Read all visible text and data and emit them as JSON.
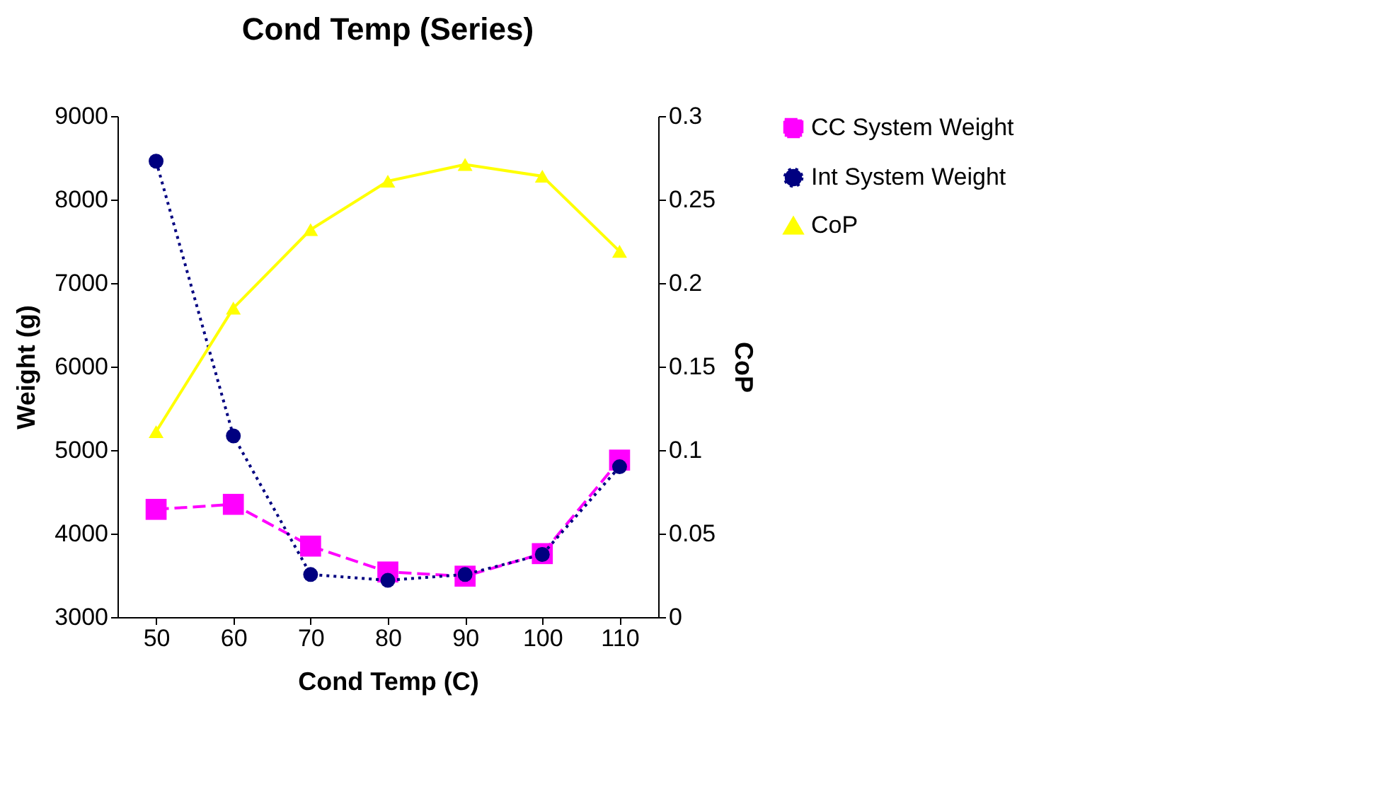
{
  "chart_data": {
    "type": "line",
    "title": "Cond Temp (Series)",
    "xlabel": "Cond Temp (C)",
    "ylabel": "Weight (g)",
    "y2label": "CoP",
    "categories": [
      "50",
      "60",
      "70",
      "80",
      "90",
      "100",
      "110"
    ],
    "series": [
      {
        "name": "CC System Weight",
        "color": "#ff00ff",
        "marker": "square",
        "line_style": "dashed",
        "values": [
          4290,
          4350,
          3850,
          3540,
          3490,
          3760,
          4880
        ]
      },
      {
        "name": "Int System Weight",
        "color": "#000080",
        "marker": "circle",
        "line_style": "dotted",
        "values": [
          8460,
          5170,
          3510,
          3440,
          3510,
          3750,
          4800
        ]
      },
      {
        "name": "CoP",
        "color": "#ffff00",
        "marker": "triangle",
        "line_style": "solid",
        "axis": "y2",
        "values": [
          0.111,
          0.185,
          0.232,
          0.261,
          0.271,
          0.264,
          0.219
        ]
      }
    ],
    "ylim": [
      3000,
      9000
    ],
    "yticks": [
      3000,
      4000,
      5000,
      6000,
      7000,
      8000,
      9000
    ],
    "y2lim": [
      0,
      0.3
    ],
    "y2ticks": [
      0,
      0.05,
      0.1,
      0.15,
      0.2,
      0.25,
      0.3
    ],
    "grid": false,
    "legend": "right"
  }
}
